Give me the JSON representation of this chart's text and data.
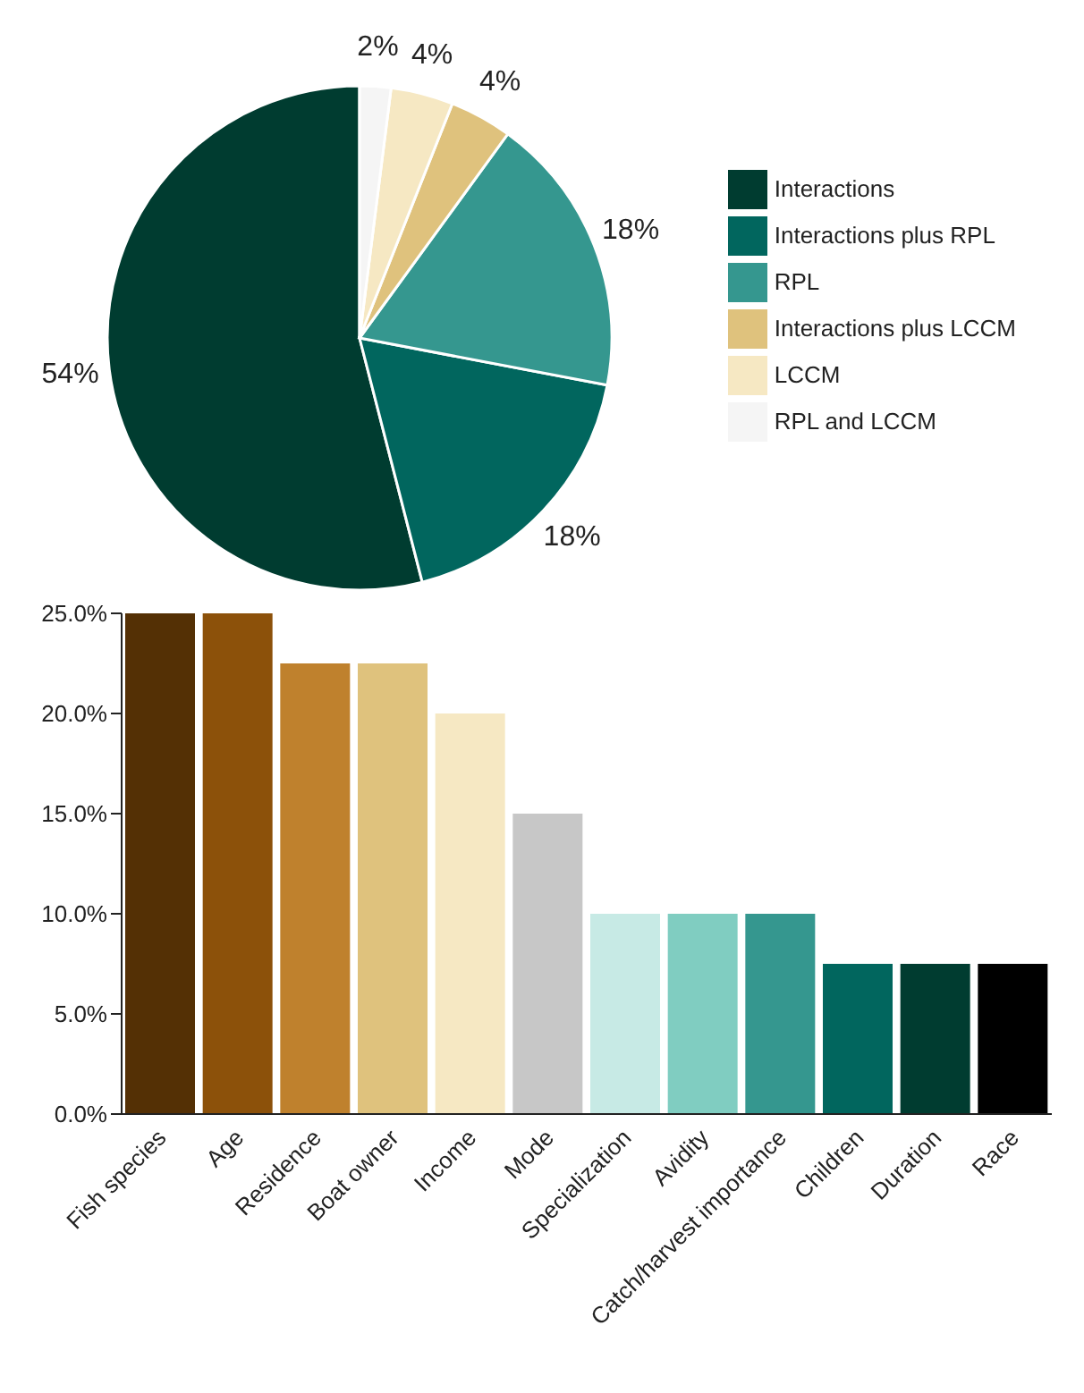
{
  "chart_data": [
    {
      "type": "pie",
      "categories": [
        "Interactions",
        "Interactions plus RPL",
        "RPL",
        "Interactions plus LCCM",
        "LCCM",
        "RPL and LCCM"
      ],
      "values": [
        54,
        18,
        18,
        4,
        4,
        2
      ],
      "colors": [
        "#003c30",
        "#01665e",
        "#35978f",
        "#dfc27d",
        "#f6e8c3",
        "#f5f5f5"
      ],
      "value_labels": [
        "54%",
        "18%",
        "18%",
        "4%",
        "4%",
        "2%"
      ],
      "legend": "right"
    },
    {
      "type": "bar",
      "categories": [
        "Fish species",
        "Age",
        "Residence",
        "Boat owner",
        "Income",
        "Mode",
        "Specialization",
        "Avidity",
        "Catch/harvest importance",
        "Children",
        "Duration",
        "Race"
      ],
      "values": [
        25,
        25,
        22.5,
        22.5,
        20,
        15,
        10,
        10,
        10,
        7.5,
        7.5,
        7.5
      ],
      "colors": [
        "#543005",
        "#8c510a",
        "#bf812d",
        "#dfc27d",
        "#f6e8c3",
        "#c7c7c7",
        "#c7eae5",
        "#80cdc1",
        "#35978f",
        "#01665e",
        "#003c30",
        "#000000"
      ],
      "ylim": [
        0,
        25
      ],
      "yticks": [
        {
          "value": 0,
          "label": "0.0%"
        },
        {
          "value": 5,
          "label": "5.0%"
        },
        {
          "value": 10,
          "label": "10.0%"
        },
        {
          "value": 15,
          "label": "15.0%"
        },
        {
          "value": 20,
          "label": "20.0%"
        },
        {
          "value": 25,
          "label": "25.0%"
        }
      ],
      "grid": false
    }
  ]
}
